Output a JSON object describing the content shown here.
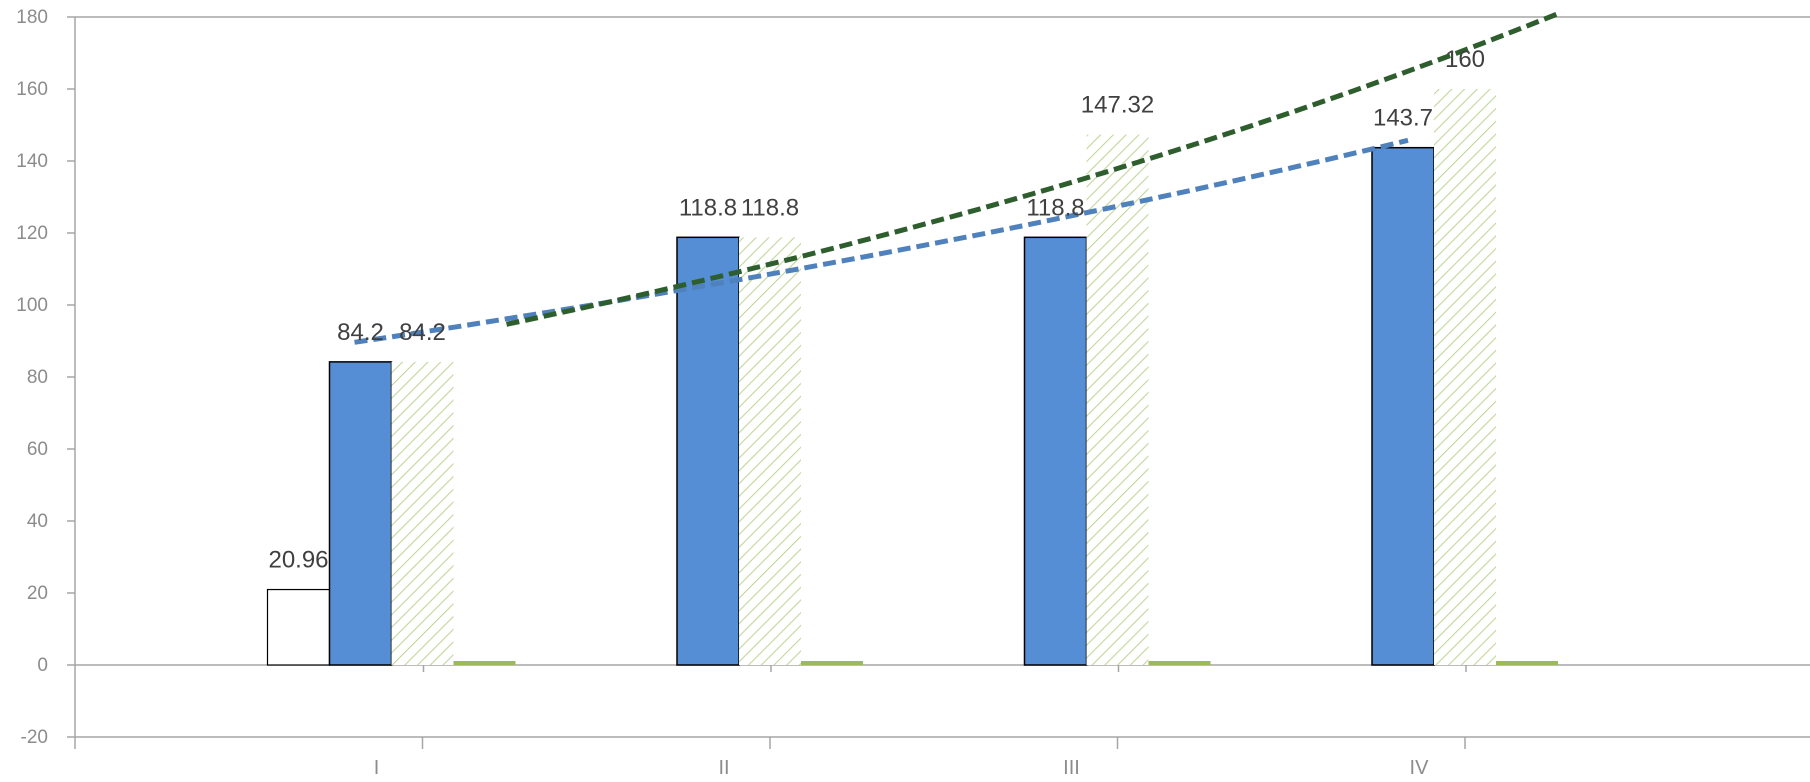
{
  "chart_data": {
    "type": "bar",
    "categories": [
      "I",
      "II",
      "III",
      "IV"
    ],
    "ylim": [
      -20,
      180
    ],
    "yticks": [
      -20,
      0,
      20,
      40,
      60,
      80,
      100,
      120,
      140,
      160,
      180
    ],
    "grid": false,
    "series": [
      {
        "key": "s1",
        "values": [
          20.96,
          null,
          null,
          null
        ],
        "labels": [
          "20.96",
          "",
          "",
          ""
        ],
        "style": "outline",
        "color": "#000000"
      },
      {
        "key": "s2",
        "values": [
          84.2,
          118.8,
          118.8,
          143.7
        ],
        "labels": [
          "84.2",
          "118.8",
          "118.8",
          "143.7"
        ],
        "style": "solid",
        "color": "#558ed5"
      },
      {
        "key": "s3",
        "values": [
          84.2,
          118.8,
          147.32,
          160
        ],
        "labels": [
          "84.2",
          "118.8",
          "147.32",
          "160"
        ],
        "style": "hatched",
        "color": "#c3d69b"
      },
      {
        "key": "s4",
        "values": [
          1,
          1,
          1,
          1
        ],
        "labels": [
          "",
          "",
          "",
          ""
        ],
        "style": "solid",
        "color": "#9bbb59"
      }
    ],
    "trendlines": [
      {
        "series": "s2",
        "type": "exponential",
        "style": "dashed",
        "color": "#4f81bd",
        "from": 84.2,
        "to": 143.7
      },
      {
        "series": "s3",
        "type": "exponential",
        "style": "dashed",
        "color": "#2e5e2e",
        "from": 84.2,
        "to": 160
      }
    ]
  }
}
